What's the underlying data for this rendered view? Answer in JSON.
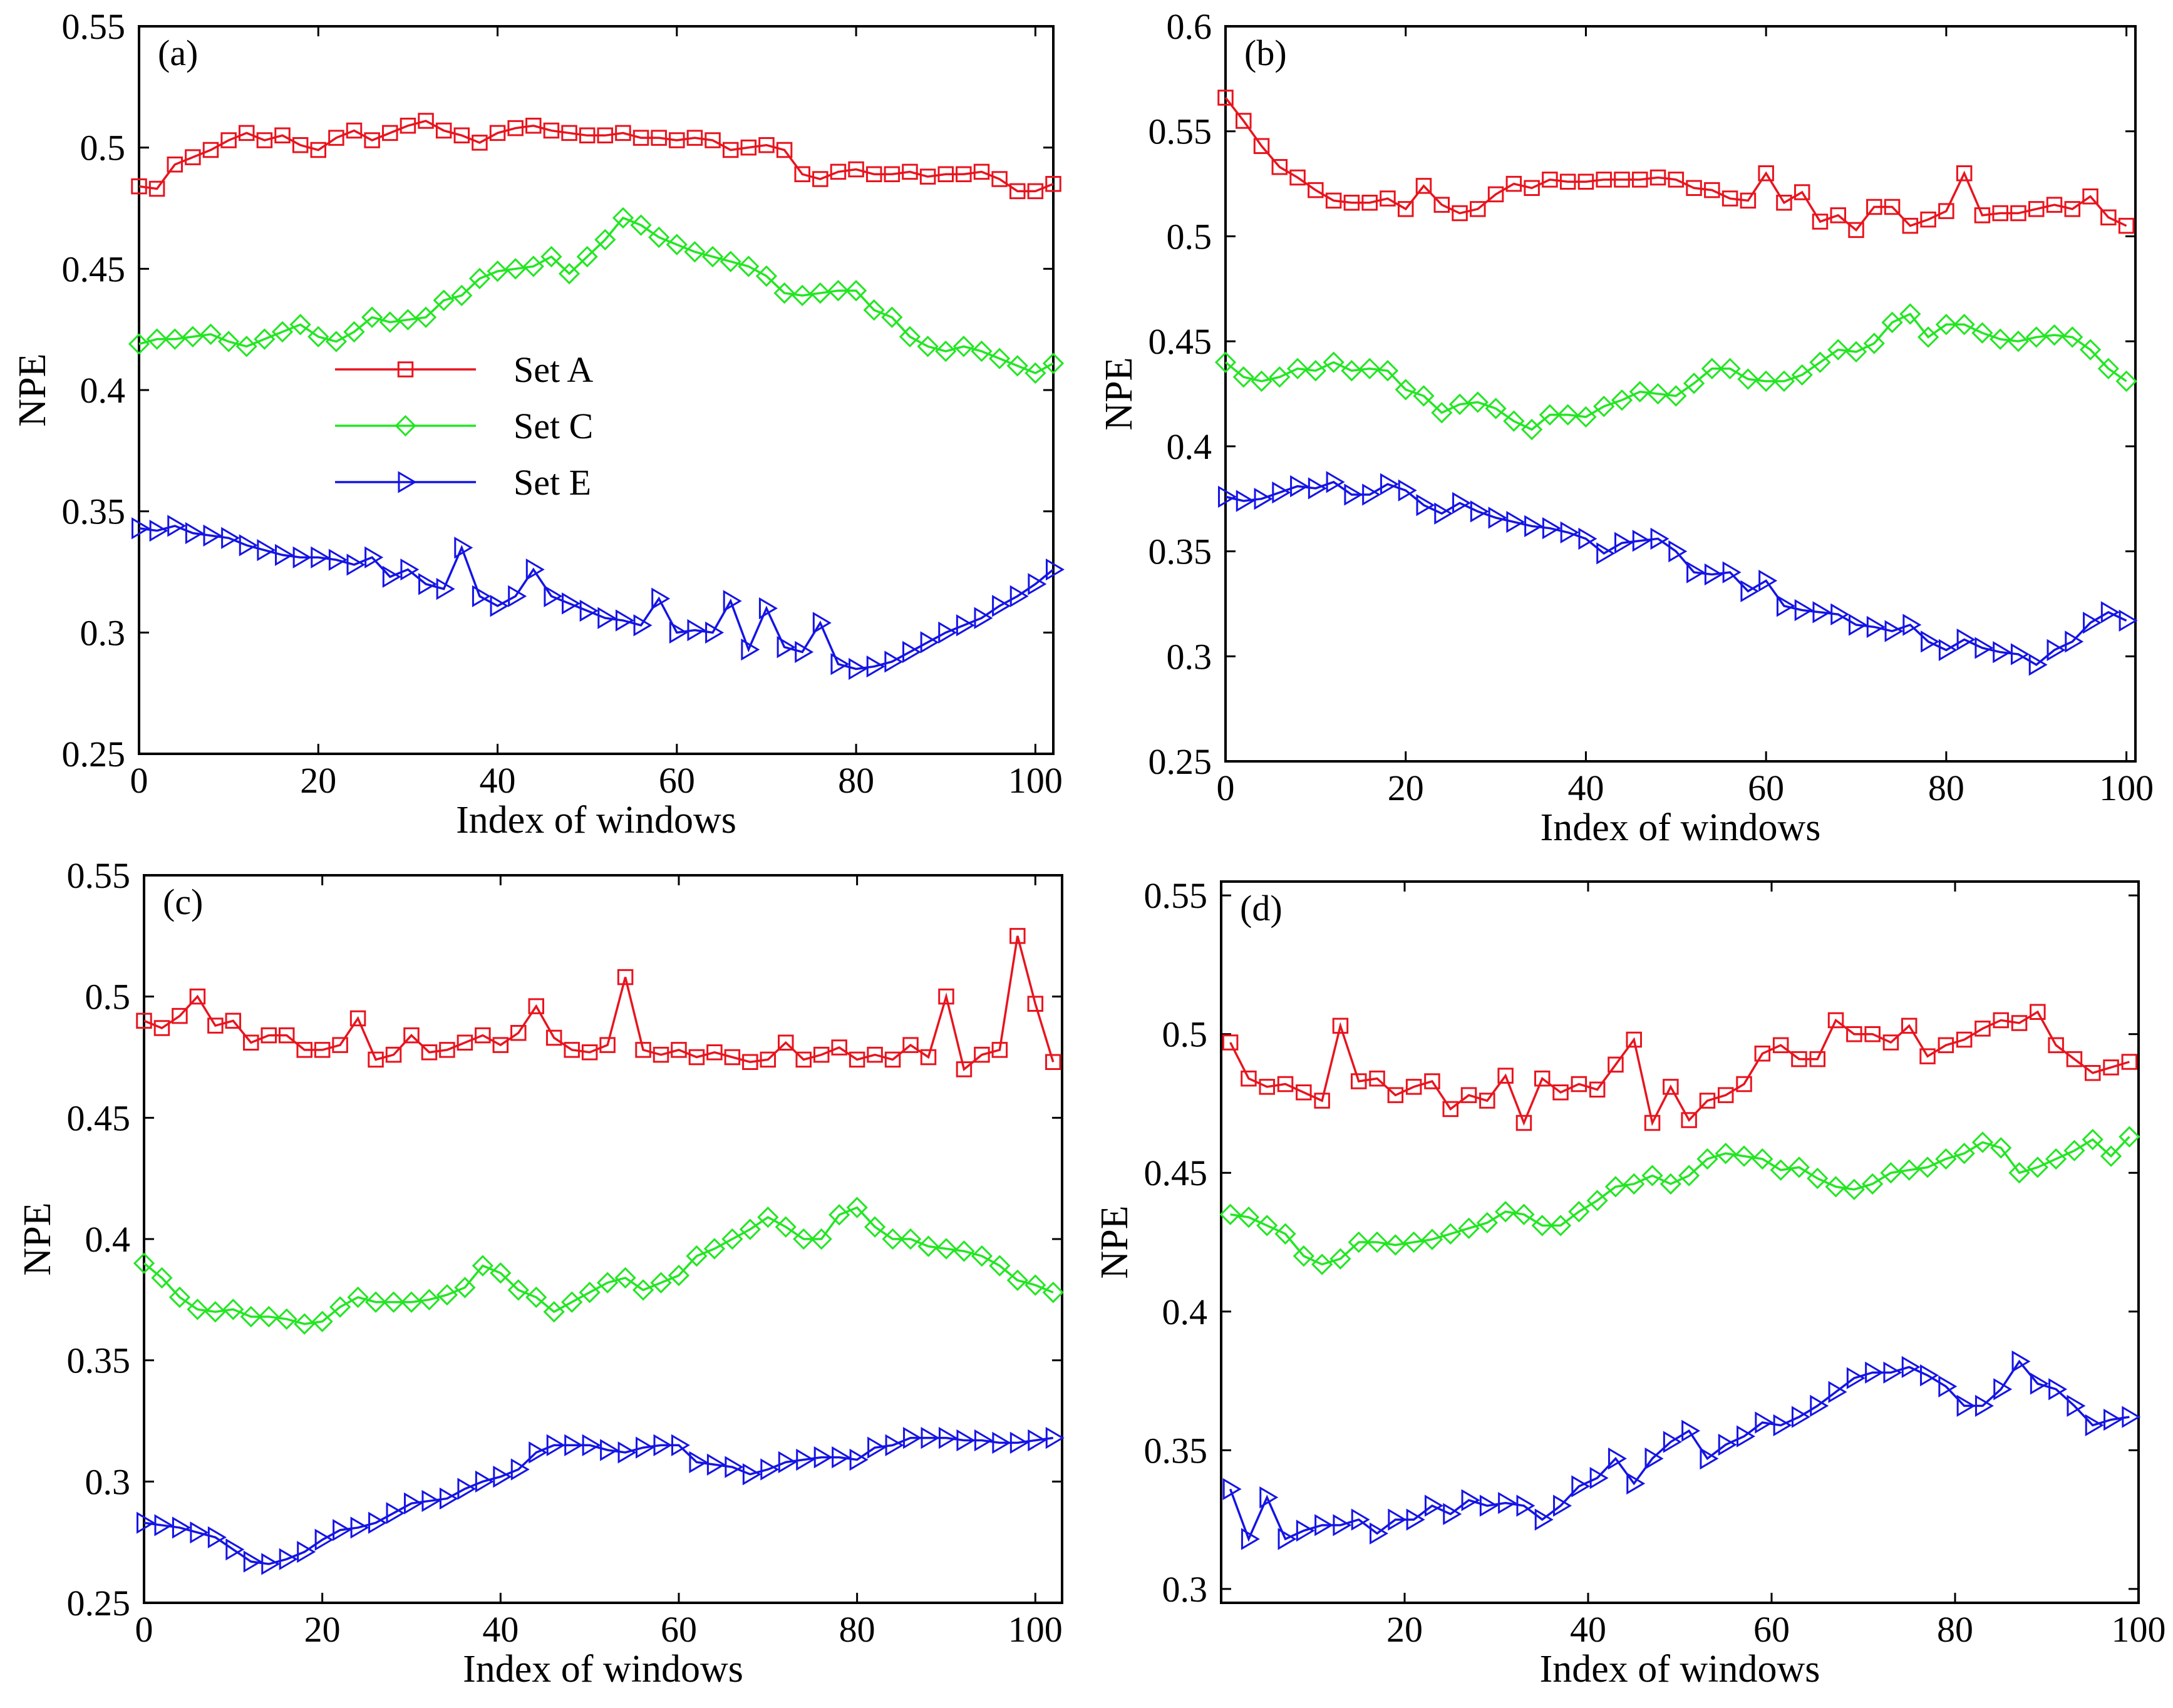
{
  "colors": {
    "set_a": "#e8141e",
    "set_c": "#22e622",
    "set_e": "#1414e6",
    "axes": "#000000"
  },
  "legend": [
    {
      "label": "Set A",
      "marker": "square"
    },
    {
      "label": "Set C",
      "marker": "diamond"
    },
    {
      "label": "Set E",
      "marker": "triangle-right"
    }
  ],
  "chart_data": [
    {
      "type": "line",
      "panel_label": "(a)",
      "xlabel": "Index of windows",
      "ylabel": "NPE",
      "xlim": [
        0,
        102
      ],
      "ylim": [
        0.25,
        0.55
      ],
      "xticks": [
        "0",
        "20",
        "40",
        "60",
        "80",
        "100"
      ],
      "yticks": [
        "0.25",
        "0.3",
        "0.35",
        "0.4",
        "0.45",
        "0.5",
        "0.55"
      ],
      "legend_position": "center-left",
      "x": [
        0,
        2,
        4,
        6,
        8,
        10,
        12,
        14,
        16,
        18,
        20,
        22,
        24,
        26,
        28,
        30,
        32,
        34,
        36,
        38,
        40,
        42,
        44,
        46,
        48,
        50,
        52,
        54,
        56,
        58,
        60,
        62,
        64,
        66,
        68,
        70,
        72,
        74,
        76,
        78,
        80,
        82,
        84,
        86,
        88,
        90,
        92,
        94,
        96,
        98,
        100,
        102
      ],
      "series": [
        {
          "name": "Set A",
          "values": [
            0.484,
            0.483,
            0.493,
            0.496,
            0.499,
            0.503,
            0.506,
            0.503,
            0.505,
            0.501,
            0.499,
            0.504,
            0.507,
            0.503,
            0.506,
            0.509,
            0.511,
            0.507,
            0.505,
            0.502,
            0.506,
            0.508,
            0.509,
            0.507,
            0.506,
            0.505,
            0.505,
            0.506,
            0.504,
            0.504,
            0.503,
            0.504,
            0.503,
            0.499,
            0.5,
            0.501,
            0.499,
            0.489,
            0.487,
            0.49,
            0.491,
            0.489,
            0.489,
            0.49,
            0.488,
            0.489,
            0.489,
            0.49,
            0.487,
            0.482,
            0.482,
            0.485
          ]
        },
        {
          "name": "Set C",
          "values": [
            0.419,
            0.421,
            0.421,
            0.422,
            0.423,
            0.42,
            0.418,
            0.421,
            0.424,
            0.427,
            0.422,
            0.42,
            0.424,
            0.43,
            0.428,
            0.429,
            0.43,
            0.437,
            0.439,
            0.446,
            0.449,
            0.45,
            0.451,
            0.455,
            0.448,
            0.455,
            0.462,
            0.471,
            0.468,
            0.463,
            0.46,
            0.457,
            0.455,
            0.453,
            0.451,
            0.447,
            0.44,
            0.439,
            0.44,
            0.441,
            0.441,
            0.433,
            0.43,
            0.422,
            0.418,
            0.416,
            0.418,
            0.416,
            0.413,
            0.41,
            0.407,
            0.411
          ]
        },
        {
          "name": "Set E",
          "values": [
            0.343,
            0.342,
            0.344,
            0.341,
            0.34,
            0.339,
            0.336,
            0.334,
            0.332,
            0.331,
            0.331,
            0.33,
            0.328,
            0.331,
            0.323,
            0.326,
            0.32,
            0.318,
            0.335,
            0.315,
            0.311,
            0.315,
            0.326,
            0.315,
            0.312,
            0.309,
            0.306,
            0.305,
            0.303,
            0.314,
            0.3,
            0.301,
            0.3,
            0.313,
            0.293,
            0.31,
            0.294,
            0.292,
            0.304,
            0.287,
            0.285,
            0.286,
            0.288,
            0.292,
            0.296,
            0.3,
            0.303,
            0.306,
            0.311,
            0.315,
            0.32,
            0.326
          ]
        }
      ]
    },
    {
      "type": "line",
      "panel_label": "(b)",
      "xlabel": "Index of windows",
      "ylabel": "NPE",
      "xlim": [
        0,
        101
      ],
      "ylim": [
        0.25,
        0.6
      ],
      "xticks": [
        "0",
        "20",
        "40",
        "60",
        "80",
        "100"
      ],
      "yticks": [
        "0.25",
        "0.3",
        "0.35",
        "0.4",
        "0.45",
        "0.5",
        "0.55",
        "0.6"
      ],
      "x": [
        0,
        2,
        4,
        6,
        8,
        10,
        12,
        14,
        16,
        18,
        20,
        22,
        24,
        26,
        28,
        30,
        32,
        34,
        36,
        38,
        40,
        42,
        44,
        46,
        48,
        50,
        52,
        54,
        56,
        58,
        60,
        62,
        64,
        66,
        68,
        70,
        72,
        74,
        76,
        78,
        80,
        82,
        84,
        86,
        88,
        90,
        92,
        94,
        96,
        98,
        100
      ],
      "series": [
        {
          "name": "Set A",
          "values": [
            0.566,
            0.555,
            0.543,
            0.533,
            0.528,
            0.522,
            0.517,
            0.516,
            0.516,
            0.518,
            0.513,
            0.524,
            0.515,
            0.511,
            0.513,
            0.52,
            0.525,
            0.523,
            0.527,
            0.526,
            0.526,
            0.527,
            0.527,
            0.527,
            0.528,
            0.527,
            0.523,
            0.522,
            0.518,
            0.517,
            0.53,
            0.516,
            0.521,
            0.507,
            0.51,
            0.503,
            0.514,
            0.514,
            0.505,
            0.508,
            0.512,
            0.53,
            0.51,
            0.511,
            0.511,
            0.513,
            0.515,
            0.513,
            0.519,
            0.509,
            0.505
          ]
        },
        {
          "name": "Set C",
          "values": [
            0.44,
            0.433,
            0.431,
            0.433,
            0.437,
            0.436,
            0.44,
            0.436,
            0.437,
            0.436,
            0.427,
            0.424,
            0.416,
            0.42,
            0.421,
            0.418,
            0.412,
            0.408,
            0.415,
            0.415,
            0.414,
            0.419,
            0.422,
            0.426,
            0.425,
            0.424,
            0.43,
            0.437,
            0.437,
            0.432,
            0.431,
            0.431,
            0.434,
            0.44,
            0.446,
            0.445,
            0.449,
            0.459,
            0.463,
            0.452,
            0.458,
            0.458,
            0.454,
            0.451,
            0.45,
            0.452,
            0.453,
            0.452,
            0.446,
            0.437,
            0.431
          ]
        },
        {
          "name": "Set E",
          "values": [
            0.376,
            0.374,
            0.375,
            0.378,
            0.381,
            0.38,
            0.383,
            0.377,
            0.377,
            0.382,
            0.379,
            0.372,
            0.368,
            0.373,
            0.369,
            0.366,
            0.364,
            0.362,
            0.361,
            0.359,
            0.356,
            0.349,
            0.354,
            0.355,
            0.356,
            0.35,
            0.34,
            0.339,
            0.34,
            0.331,
            0.336,
            0.324,
            0.322,
            0.321,
            0.32,
            0.315,
            0.314,
            0.312,
            0.315,
            0.307,
            0.303,
            0.308,
            0.304,
            0.302,
            0.301,
            0.296,
            0.303,
            0.307,
            0.316,
            0.321,
            0.317
          ]
        }
      ]
    },
    {
      "type": "line",
      "panel_label": "(c)",
      "xlabel": "Index of windows",
      "ylabel": "NPE",
      "xlim": [
        0,
        103
      ],
      "ylim": [
        0.25,
        0.55
      ],
      "xticks": [
        "0",
        "20",
        "40",
        "60",
        "80",
        "100"
      ],
      "yticks": [
        "0.25",
        "0.3",
        "0.35",
        "0.4",
        "0.45",
        "0.5",
        "0.55"
      ],
      "x": [
        0,
        2,
        4,
        6,
        8,
        10,
        12,
        14,
        16,
        18,
        20,
        22,
        24,
        26,
        28,
        30,
        32,
        34,
        36,
        38,
        40,
        42,
        44,
        46,
        48,
        50,
        52,
        54,
        56,
        58,
        60,
        62,
        64,
        66,
        68,
        70,
        72,
        74,
        76,
        78,
        80,
        82,
        84,
        86,
        88,
        90,
        92,
        94,
        96,
        98,
        100,
        102
      ],
      "series": [
        {
          "name": "Set A",
          "values": [
            0.49,
            0.487,
            0.492,
            0.5,
            0.488,
            0.49,
            0.481,
            0.484,
            0.484,
            0.478,
            0.478,
            0.48,
            0.491,
            0.474,
            0.476,
            0.484,
            0.477,
            0.478,
            0.481,
            0.484,
            0.48,
            0.485,
            0.496,
            0.483,
            0.478,
            0.477,
            0.48,
            0.508,
            0.478,
            0.476,
            0.478,
            0.475,
            0.477,
            0.475,
            0.473,
            0.474,
            0.481,
            0.474,
            0.476,
            0.479,
            0.474,
            0.476,
            0.474,
            0.48,
            0.475,
            0.5,
            0.47,
            0.476,
            0.478,
            0.525,
            0.497,
            0.473
          ]
        },
        {
          "name": "Set C",
          "values": [
            0.39,
            0.384,
            0.376,
            0.371,
            0.37,
            0.371,
            0.368,
            0.368,
            0.367,
            0.365,
            0.366,
            0.372,
            0.376,
            0.374,
            0.374,
            0.374,
            0.375,
            0.377,
            0.38,
            0.389,
            0.386,
            0.379,
            0.376,
            0.37,
            0.374,
            0.378,
            0.382,
            0.384,
            0.379,
            0.382,
            0.385,
            0.393,
            0.396,
            0.4,
            0.404,
            0.409,
            0.405,
            0.4,
            0.4,
            0.41,
            0.413,
            0.405,
            0.4,
            0.4,
            0.397,
            0.396,
            0.395,
            0.393,
            0.389,
            0.383,
            0.381,
            0.378
          ]
        },
        {
          "name": "Set E",
          "values": [
            0.283,
            0.282,
            0.281,
            0.279,
            0.277,
            0.272,
            0.267,
            0.266,
            0.268,
            0.271,
            0.276,
            0.28,
            0.281,
            0.283,
            0.287,
            0.291,
            0.292,
            0.293,
            0.297,
            0.3,
            0.302,
            0.305,
            0.312,
            0.315,
            0.315,
            0.315,
            0.313,
            0.312,
            0.314,
            0.315,
            0.315,
            0.308,
            0.307,
            0.306,
            0.303,
            0.305,
            0.308,
            0.309,
            0.31,
            0.31,
            0.309,
            0.314,
            0.315,
            0.318,
            0.318,
            0.318,
            0.317,
            0.317,
            0.316,
            0.316,
            0.317,
            0.318
          ]
        }
      ]
    },
    {
      "type": "line",
      "panel_label": "(d)",
      "xlabel": "Index of windows",
      "ylabel": "NPE",
      "xlim": [
        0,
        100
      ],
      "ylim": [
        0.295,
        0.555
      ],
      "xticks": [
        "20",
        "40",
        "60",
        "80",
        "100"
      ],
      "yticks": [
        "0.3",
        "0.35",
        "0.4",
        "0.45",
        "0.5",
        "0.55"
      ],
      "x": [
        1,
        3,
        5,
        7,
        9,
        11,
        13,
        15,
        17,
        19,
        21,
        23,
        25,
        27,
        29,
        31,
        33,
        35,
        37,
        39,
        41,
        43,
        45,
        47,
        49,
        51,
        53,
        55,
        57,
        59,
        61,
        63,
        65,
        67,
        69,
        71,
        73,
        75,
        77,
        79,
        81,
        83,
        85,
        87,
        89,
        91,
        93,
        95,
        97,
        99
      ],
      "series": [
        {
          "name": "Set A",
          "values": [
            0.497,
            0.484,
            0.481,
            0.482,
            0.479,
            0.476,
            0.503,
            0.483,
            0.484,
            0.478,
            0.481,
            0.483,
            0.473,
            0.478,
            0.476,
            0.485,
            0.468,
            0.484,
            0.479,
            0.482,
            0.48,
            0.489,
            0.498,
            0.468,
            0.481,
            0.469,
            0.476,
            0.478,
            0.482,
            0.493,
            0.496,
            0.491,
            0.491,
            0.505,
            0.5,
            0.5,
            0.497,
            0.503,
            0.492,
            0.496,
            0.498,
            0.502,
            0.505,
            0.504,
            0.508,
            0.496,
            0.491,
            0.486,
            0.488,
            0.49
          ]
        },
        {
          "name": "Set C",
          "values": [
            0.435,
            0.434,
            0.431,
            0.428,
            0.42,
            0.417,
            0.419,
            0.425,
            0.425,
            0.424,
            0.425,
            0.426,
            0.428,
            0.43,
            0.432,
            0.436,
            0.435,
            0.431,
            0.431,
            0.436,
            0.44,
            0.445,
            0.446,
            0.449,
            0.446,
            0.449,
            0.455,
            0.457,
            0.456,
            0.455,
            0.451,
            0.452,
            0.448,
            0.445,
            0.444,
            0.446,
            0.45,
            0.451,
            0.452,
            0.455,
            0.457,
            0.461,
            0.459,
            0.45,
            0.452,
            0.455,
            0.458,
            0.462,
            0.456,
            0.463
          ]
        },
        {
          "name": "Set E",
          "values": [
            0.336,
            0.318,
            0.333,
            0.318,
            0.321,
            0.323,
            0.323,
            0.325,
            0.32,
            0.325,
            0.325,
            0.33,
            0.327,
            0.332,
            0.33,
            0.331,
            0.33,
            0.325,
            0.33,
            0.337,
            0.34,
            0.347,
            0.338,
            0.347,
            0.353,
            0.357,
            0.347,
            0.352,
            0.355,
            0.36,
            0.359,
            0.362,
            0.366,
            0.371,
            0.376,
            0.378,
            0.378,
            0.38,
            0.377,
            0.373,
            0.366,
            0.366,
            0.372,
            0.382,
            0.374,
            0.372,
            0.366,
            0.359,
            0.361,
            0.362
          ]
        }
      ]
    }
  ]
}
